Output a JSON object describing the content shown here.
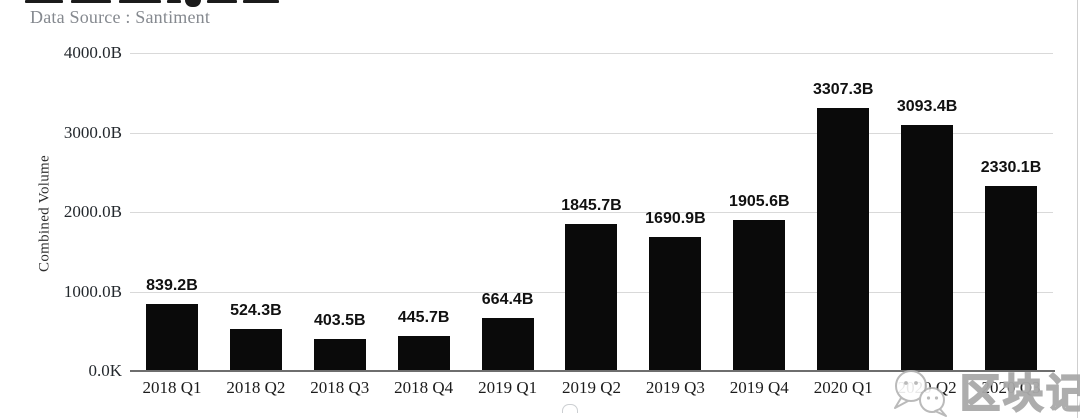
{
  "header": {
    "data_source": "Data Source : Santiment"
  },
  "watermark": {
    "icon": "wechat-icon",
    "text": "区块记"
  },
  "colors": {
    "bar": "#0a0a0a",
    "gridline": "#d9d9d9",
    "axis_line": "#6e6e6e",
    "caption_gray": "#85898f",
    "label_black": "#111111"
  },
  "chart_data": {
    "type": "bar",
    "title": "",
    "ylabel": "Combined Volume",
    "xlabel": "",
    "categories": [
      "2018 Q1",
      "2018 Q2",
      "2018 Q3",
      "2018 Q4",
      "2019 Q1",
      "2019 Q2",
      "2019 Q3",
      "2019 Q4",
      "2020 Q1",
      "2020 Q2",
      "2020 Q3"
    ],
    "values": [
      839.2,
      524.3,
      403.5,
      445.7,
      664.4,
      1845.7,
      1690.9,
      1905.6,
      3307.3,
      3093.4,
      2330.1
    ],
    "value_labels": [
      "839.2B",
      "524.3B",
      "403.5B",
      "445.7B",
      "664.4B",
      "1845.7B",
      "1690.9B",
      "1905.6B",
      "3307.3B",
      "3093.4B",
      "2330.1B"
    ],
    "yticks": [
      "4000.0B",
      "3000.0B",
      "2000.0B",
      "1000.0B",
      "0.0K"
    ],
    "ylim": [
      0,
      4000
    ],
    "grid": true,
    "legend": null,
    "bar_color": "#0a0a0a"
  }
}
